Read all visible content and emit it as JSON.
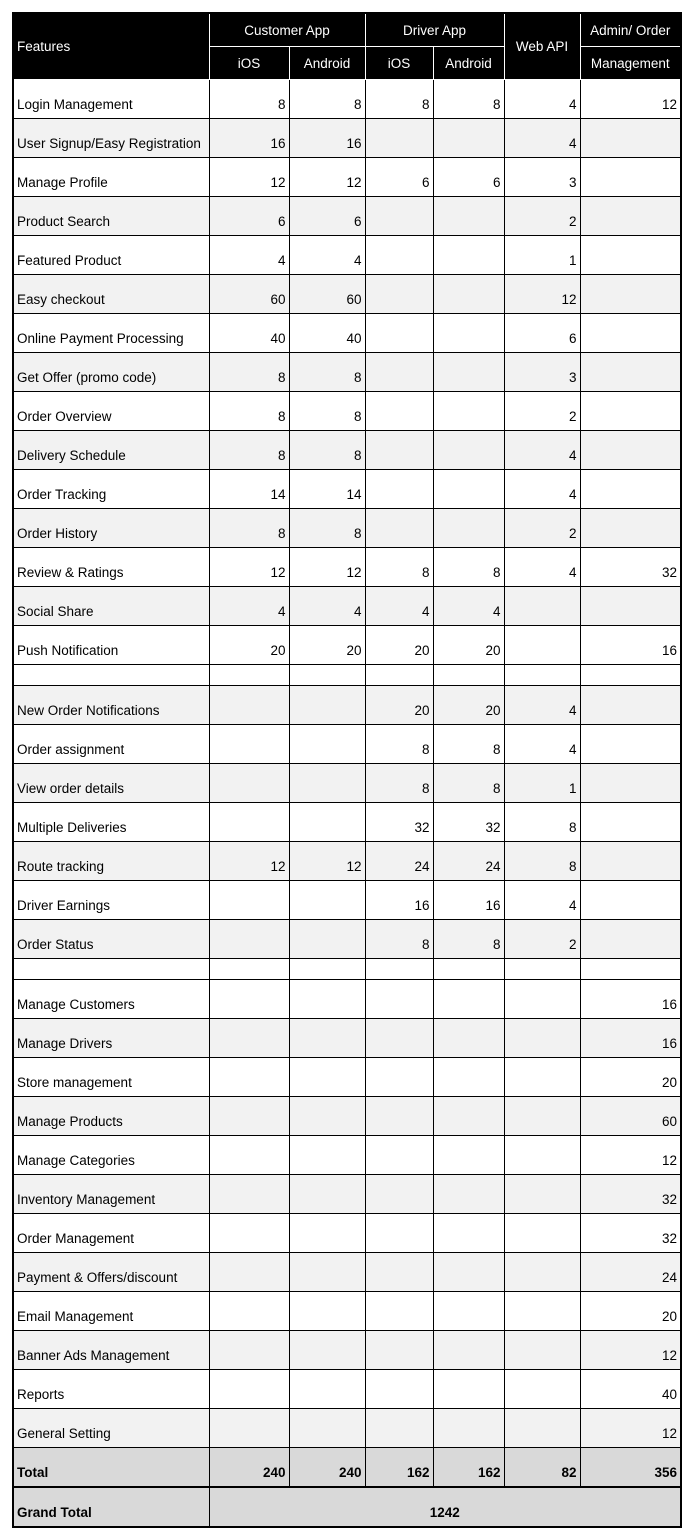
{
  "header": {
    "features": "Features",
    "customer_app": "Customer App",
    "driver_app": "Driver App",
    "web_api": "Web API",
    "admin_top": "Admin/ Order",
    "admin_bottom": "Management",
    "ios": "iOS",
    "android": "Android"
  },
  "sections": [
    [
      [
        "Login Management",
        "8",
        "8",
        "8",
        "8",
        "4",
        "12"
      ],
      [
        "User Signup/Easy Registration",
        "16",
        "16",
        "",
        "",
        "4",
        ""
      ],
      [
        "Manage Profile",
        "12",
        "12",
        "6",
        "6",
        "3",
        ""
      ],
      [
        "Product Search",
        "6",
        "6",
        "",
        "",
        "2",
        ""
      ],
      [
        "Featured Product",
        "4",
        "4",
        "",
        "",
        "1",
        ""
      ],
      [
        "Easy checkout",
        "60",
        "60",
        "",
        "",
        "12",
        ""
      ],
      [
        "Online Payment Processing",
        "40",
        "40",
        "",
        "",
        "6",
        ""
      ],
      [
        "Get Offer (promo code)",
        "8",
        "8",
        "",
        "",
        "3",
        ""
      ],
      [
        "Order Overview",
        "8",
        "8",
        "",
        "",
        "2",
        ""
      ],
      [
        "Delivery Schedule",
        "8",
        "8",
        "",
        "",
        "4",
        ""
      ],
      [
        "Order Tracking",
        "14",
        "14",
        "",
        "",
        "4",
        ""
      ],
      [
        "Order History",
        "8",
        "8",
        "",
        "",
        "2",
        ""
      ],
      [
        "Review & Ratings",
        "12",
        "12",
        "8",
        "8",
        "4",
        "32"
      ],
      [
        "Social Share",
        "4",
        "4",
        "4",
        "4",
        "",
        ""
      ],
      [
        "Push Notification",
        "20",
        "20",
        "20",
        "20",
        "",
        "16"
      ]
    ],
    [
      [
        "New Order Notifications",
        "",
        "",
        "20",
        "20",
        "4",
        ""
      ],
      [
        "Order assignment",
        "",
        "",
        "8",
        "8",
        "4",
        ""
      ],
      [
        "View order details",
        "",
        "",
        "8",
        "8",
        "1",
        ""
      ],
      [
        "Multiple Deliveries",
        "",
        "",
        "32",
        "32",
        "8",
        ""
      ],
      [
        "Route tracking",
        "12",
        "12",
        "24",
        "24",
        "8",
        ""
      ],
      [
        "Driver Earnings",
        "",
        "",
        "16",
        "16",
        "4",
        ""
      ],
      [
        "Order Status",
        "",
        "",
        "8",
        "8",
        "2",
        ""
      ]
    ],
    [
      [
        "Manage Customers",
        "",
        "",
        "",
        "",
        "",
        "16"
      ],
      [
        "Manage Drivers",
        "",
        "",
        "",
        "",
        "",
        "16"
      ],
      [
        "Store management",
        "",
        "",
        "",
        "",
        "",
        "20"
      ],
      [
        "Manage Products",
        "",
        "",
        "",
        "",
        "",
        "60"
      ],
      [
        "Manage Categories",
        "",
        "",
        "",
        "",
        "",
        "12"
      ],
      [
        "Inventory Management",
        "",
        "",
        "",
        "",
        "",
        "32"
      ],
      [
        "Order Management",
        "",
        "",
        "",
        "",
        "",
        "32"
      ],
      [
        "Payment & Offers/discount",
        "",
        "",
        "",
        "",
        "",
        "24"
      ],
      [
        "Email Management",
        "",
        "",
        "",
        "",
        "",
        "20"
      ],
      [
        "Banner Ads Management",
        "",
        "",
        "",
        "",
        "",
        "12"
      ],
      [
        "Reports",
        "",
        "",
        "",
        "",
        "",
        "40"
      ],
      [
        "General Setting",
        "",
        "",
        "",
        "",
        "",
        "12"
      ]
    ]
  ],
  "total": [
    "Total",
    "240",
    "240",
    "162",
    "162",
    "82",
    "356"
  ],
  "grand_total": {
    "label": "Grand Total",
    "value": "1242"
  }
}
